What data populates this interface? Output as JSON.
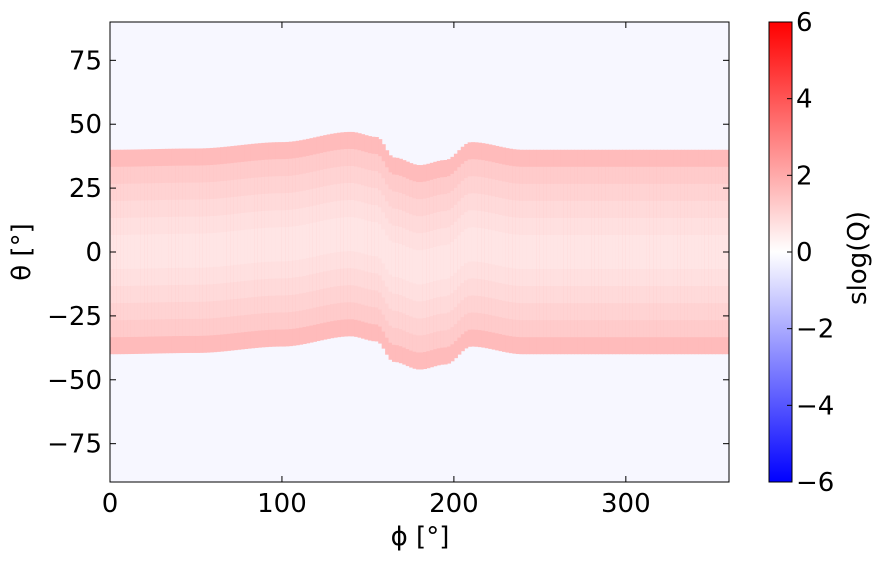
{
  "chart_data": {
    "type": "heatmap",
    "xlabel": "ϕ [°]",
    "ylabel": "θ [°]",
    "xlim": [
      0,
      360
    ],
    "ylim": [
      -90,
      90
    ],
    "xticks": [
      0,
      100,
      200,
      300
    ],
    "yticks": [
      75,
      50,
      25,
      0,
      -25,
      -50,
      -75
    ],
    "xtick_labels": [
      "0",
      "100",
      "200",
      "300"
    ],
    "ytick_labels": [
      "75",
      "50",
      "25",
      "0",
      "−25",
      "−50",
      "−75"
    ],
    "colorbar": {
      "label": "slog(Q)",
      "range": [
        -6,
        6
      ],
      "ticks": [
        6,
        4,
        2,
        0,
        -2,
        -4,
        -6
      ],
      "tick_labels": [
        "6",
        "4",
        "2",
        "0",
        "−2",
        "−4",
        "−6"
      ],
      "colormap": "bwr",
      "low_color": "#0000ff",
      "mid_color": "#ffffff",
      "high_color": "#ff0000"
    },
    "background_value": -0.2,
    "band": {
      "description_note": "S-shaped band of positive values",
      "centerline": [
        [
          0,
          0
        ],
        [
          50,
          0.5
        ],
        [
          100,
          3
        ],
        [
          140,
          7
        ],
        [
          155,
          5
        ],
        [
          165,
          -3
        ],
        [
          180,
          -6
        ],
        [
          195,
          -4
        ],
        [
          210,
          3
        ],
        [
          240,
          0
        ],
        [
          280,
          0
        ],
        [
          360,
          0
        ]
      ],
      "half_width": 40,
      "edge_value": 1.6,
      "center_value": 0.5
    }
  }
}
